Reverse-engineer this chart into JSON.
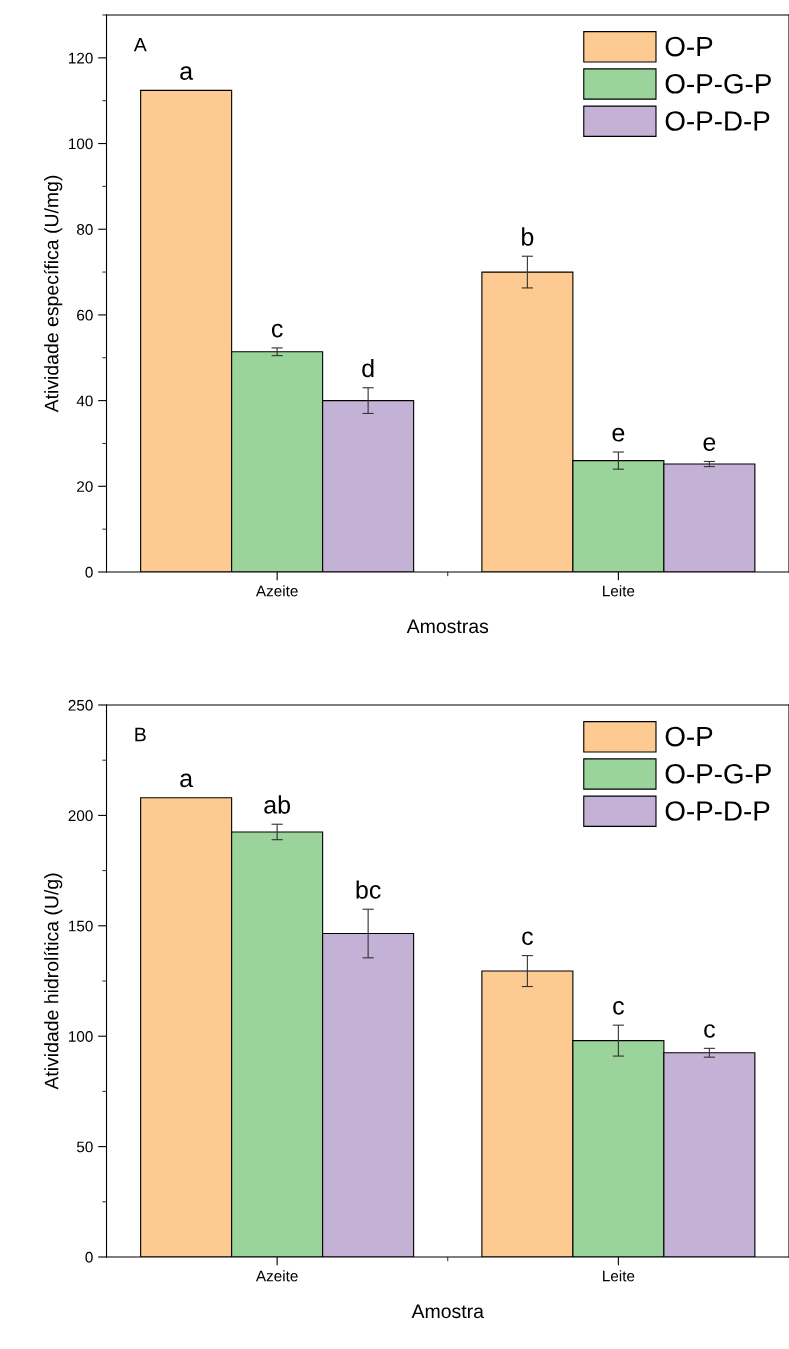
{
  "chart_data": [
    {
      "type": "bar",
      "xlabel": "Amostras",
      "ylabel": "Atividade específica (U/mg)",
      "categories": [
        "Azeite",
        "Leite"
      ],
      "ylim": [
        0,
        130
      ],
      "yticks": [
        0,
        20,
        40,
        60,
        80,
        100,
        120
      ],
      "legend": "top right",
      "series": [
        {
          "name": "O-P",
          "color": "#fdcb92",
          "values": [
            112.4,
            70
          ],
          "errors": [
            null,
            3.7
          ]
        },
        {
          "name": "O-P-G-P",
          "color": "#9bd49a",
          "values": [
            51.4,
            26
          ],
          "errors": [
            0.9,
            2
          ]
        },
        {
          "name": "O-P-D-P",
          "color": "#c3b2d6",
          "values": [
            40,
            25.2
          ],
          "errors": [
            3,
            0.6
          ]
        }
      ],
      "annotations": [
        "A",
        "a",
        "c",
        "d",
        "b",
        "e",
        "e"
      ]
    },
    {
      "type": "bar",
      "xlabel": "Amostra",
      "ylabel": "Atividade hidrolítica (U/g)",
      "categories": [
        "Azeite",
        "Leite"
      ],
      "ylim": [
        0,
        250
      ],
      "yticks": [
        0,
        50,
        100,
        150,
        200,
        250
      ],
      "legend": "top right",
      "series": [
        {
          "name": "O-P",
          "color": "#fdcb92",
          "values": [
            208,
            129.5
          ],
          "errors": [
            null,
            7
          ]
        },
        {
          "name": "O-P-G-P",
          "color": "#9bd49a",
          "values": [
            192.5,
            98
          ],
          "errors": [
            3.5,
            7
          ]
        },
        {
          "name": "O-P-D-P",
          "color": "#c3b2d6",
          "values": [
            146.5,
            92.5
          ],
          "errors": [
            11,
            2
          ]
        }
      ],
      "annotations": [
        "B",
        "a",
        "ab",
        "bc",
        "c",
        "c",
        "c"
      ]
    }
  ]
}
